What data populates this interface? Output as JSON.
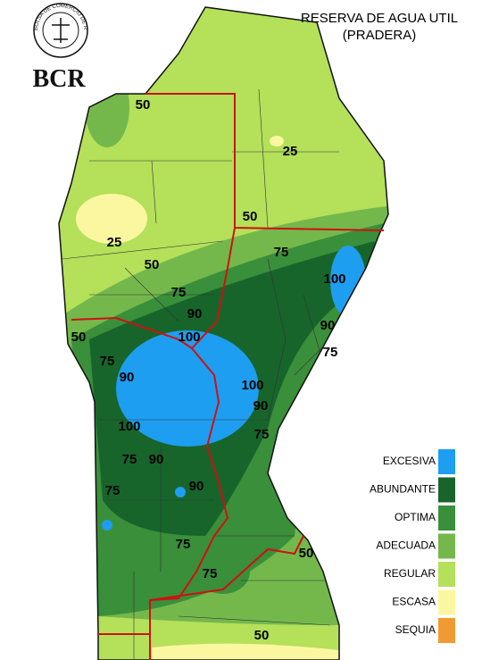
{
  "logo": {
    "ring_text": "BOLSA DE COMERCIO DE ROSARIO",
    "abbr": "BCR"
  },
  "title": [
    "RESERVA DE AGUA UTIL",
    "(PRADERA)"
  ],
  "legend": [
    {
      "label": "EXCESIVA",
      "color": "#1e9ef0"
    },
    {
      "label": "ABUNDANTE",
      "color": "#17652b"
    },
    {
      "label": "OPTIMA",
      "color": "#3a8f3a"
    },
    {
      "label": "ADECUADA",
      "color": "#74b84c"
    },
    {
      "label": "REGULAR",
      "color": "#b4e05a"
    },
    {
      "label": "ESCASA",
      "color": "#fbf7a0"
    },
    {
      "label": "SEQUIA",
      "color": "#f29a32"
    }
  ],
  "contour_labels": [
    50,
    25,
    50,
    25,
    50,
    75,
    100,
    75,
    90,
    100,
    90,
    75,
    50,
    75,
    90,
    100,
    90,
    100,
    75,
    75,
    90,
    90,
    75,
    75,
    75,
    50,
    50
  ]
}
